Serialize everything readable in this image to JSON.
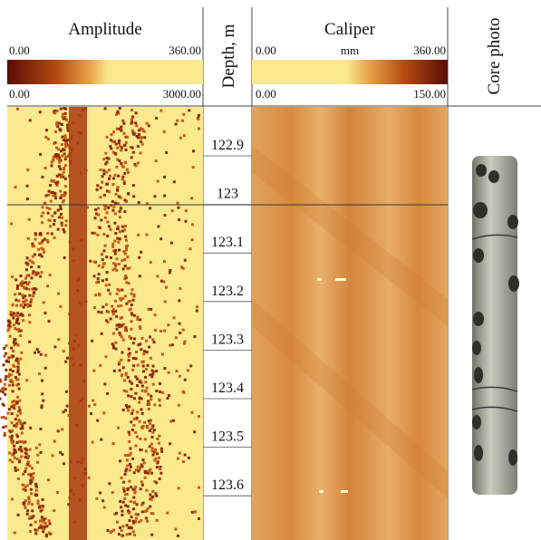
{
  "amplitude": {
    "title": "Amplitude",
    "scale_top": {
      "min": "0.00",
      "max": "360.00"
    },
    "scale_bottom": {
      "min": "0.00",
      "max": "3000.00"
    }
  },
  "depth": {
    "title": "Depth, m",
    "labels": [
      "122.9",
      "123",
      "123.1",
      "123.2",
      "123.3",
      "123.4",
      "123.5",
      "123.6"
    ]
  },
  "caliper": {
    "title": "Caliper",
    "scale_top": {
      "min": "0.00",
      "unit": "mm",
      "max": "360.00"
    },
    "scale_bottom": {
      "min": "0.00",
      "max": "150.00"
    }
  },
  "core_photo": {
    "title": "Core photo"
  }
}
